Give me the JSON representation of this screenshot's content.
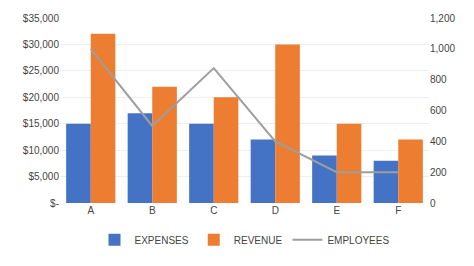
{
  "chart_data": {
    "type": "bar",
    "categories": [
      "A",
      "B",
      "C",
      "D",
      "E",
      "F"
    ],
    "series": [
      {
        "name": "EXPENSES",
        "color": "#4472C4",
        "values": [
          15000,
          17000,
          15000,
          12000,
          9000,
          8000
        ]
      },
      {
        "name": "REVENUE",
        "color": "#ED7D31",
        "values": [
          32000,
          22000,
          20000,
          30000,
          15000,
          12000
        ]
      },
      {
        "name": "EMPLOYEES",
        "color": "#9E9E9E",
        "values": [
          1000,
          500,
          875,
          400,
          200,
          200
        ],
        "type": "line",
        "axis": "y2"
      }
    ],
    "ylim": [
      0,
      35000
    ],
    "yticks": [
      {
        "value": 0,
        "label": "$-"
      },
      {
        "value": 5000,
        "label": "$5,000"
      },
      {
        "value": 10000,
        "label": "$10,000"
      },
      {
        "value": 15000,
        "label": "$15,000"
      },
      {
        "value": 20000,
        "label": "$20,000"
      },
      {
        "value": 25000,
        "label": "$25,000"
      },
      {
        "value": 30000,
        "label": "$30,000"
      },
      {
        "value": 35000,
        "label": "$35,000"
      }
    ],
    "y2lim": [
      0,
      1200
    ],
    "y2ticks": [
      0,
      200,
      400,
      600,
      800,
      {
        "value": 1000,
        "label": "1,000"
      },
      {
        "value": 1200,
        "label": "1,200"
      }
    ],
    "grid": true,
    "legend": "bottom"
  }
}
